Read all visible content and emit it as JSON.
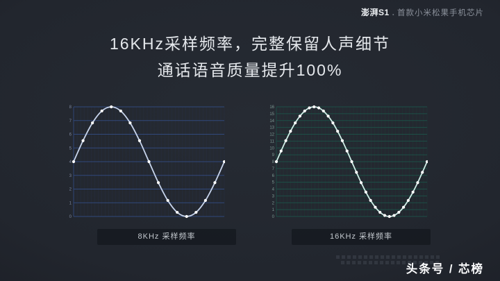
{
  "header": {
    "brand": "澎湃S1",
    "separator": ".",
    "subtitle": "首款小米松果手机芯片"
  },
  "title": {
    "line1": "16KHz采样频率，完整保留人声细节",
    "line2": "通话语音质量提升100%"
  },
  "footer": {
    "credit": "头条号 / 芯榜"
  },
  "colors": {
    "background_center": "#262b33",
    "background_edge": "#15171d",
    "left_chart_grid": "#31497c",
    "right_chart_grid": "#1d4f47",
    "left_chart_line": "#c7d4ec",
    "right_chart_line": "#cfeee7",
    "sample_dot": "#ffffff",
    "caption_text": "#c3c8ce"
  },
  "chart_data": [
    {
      "type": "line",
      "title": "8KHz 采样频率",
      "xlabel": "",
      "ylabel": "",
      "ylim": [
        0,
        8
      ],
      "y_ticks": [
        0,
        1,
        2,
        3,
        4,
        5,
        6,
        7,
        8
      ],
      "grid": true,
      "sample_count": 17,
      "values": [
        4,
        5.53,
        6.83,
        7.7,
        8,
        7.7,
        6.83,
        5.53,
        4,
        2.47,
        1.17,
        0.3,
        0,
        0.3,
        1.17,
        2.47,
        4
      ],
      "grid_color": "#31497c",
      "minor_grid_color": "#272f42",
      "line_color": "#c7d4ec",
      "dot_color": "#ffffff",
      "tick_label_color": "#7e88a0"
    },
    {
      "type": "line",
      "title": "16KHz 采样频率",
      "xlabel": "",
      "ylabel": "",
      "ylim": [
        0,
        16
      ],
      "y_ticks": [
        0,
        1,
        2,
        3,
        4,
        5,
        6,
        7,
        8,
        9,
        10,
        11,
        12,
        13,
        14,
        15,
        16
      ],
      "grid": true,
      "sample_count": 33,
      "values": [
        8,
        9.56,
        11.06,
        12.44,
        13.66,
        14.65,
        15.39,
        15.85,
        16,
        15.85,
        15.39,
        14.65,
        13.66,
        12.44,
        11.06,
        9.56,
        8,
        6.44,
        4.94,
        3.56,
        2.34,
        1.35,
        0.61,
        0.15,
        0,
        0.15,
        0.61,
        1.35,
        2.34,
        3.56,
        4.94,
        6.44,
        8
      ],
      "grid_color": "#1d4f47",
      "minor_grid_color": "#1f3b36",
      "line_color": "#cfeee7",
      "dot_color": "#ffffff",
      "tick_label_color": "#7e9a94"
    }
  ]
}
